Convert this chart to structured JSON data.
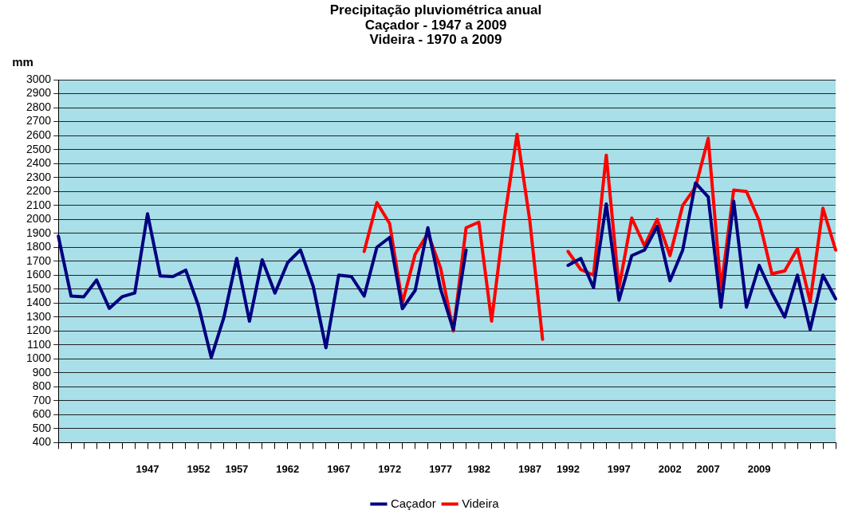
{
  "chart_data": {
    "type": "line",
    "title": "Precipitação pluviométrica anual\nCaçador - 1947 a 2009\nVideira - 1970 a 2009",
    "ylabel": "mm",
    "categories": [
      null,
      null,
      null,
      null,
      null,
      null,
      null,
      "1947",
      null,
      null,
      null,
      "1952",
      null,
      null,
      "1957",
      null,
      null,
      null,
      "1962",
      null,
      null,
      null,
      "1967",
      null,
      null,
      null,
      "1972",
      null,
      null,
      null,
      "1977",
      null,
      null,
      "1982",
      null,
      null,
      null,
      "1987",
      null,
      null,
      "1992",
      null,
      null,
      null,
      "1997",
      null,
      null,
      null,
      "2002",
      null,
      null,
      "2007",
      null,
      null,
      null,
      "2009",
      null,
      null,
      null,
      null,
      null,
      null
    ],
    "series": [
      {
        "name": "Caçador",
        "color": "#000080",
        "values": [
          1880,
          1450,
          1445,
          1565,
          1362,
          1445,
          1472,
          2040,
          1594,
          1590,
          1636,
          1380,
          1010,
          1300,
          1720,
          1270,
          1710,
          1472,
          1690,
          1781,
          1520,
          1080,
          1600,
          1590,
          1450,
          1800,
          1870,
          1360,
          1490,
          1940,
          1500,
          1210,
          1780,
          null,
          null,
          null,
          null,
          null,
          null,
          null,
          1670,
          1720,
          1510,
          2110,
          1420,
          1740,
          1780,
          1950,
          1560,
          1780,
          2260,
          2160,
          1370,
          2130,
          1370,
          1670,
          1470,
          1300,
          1600,
          1210,
          1600,
          1430
        ]
      },
      {
        "name": "Videira",
        "color": "#ff0000",
        "values": [
          null,
          null,
          null,
          null,
          null,
          null,
          null,
          null,
          null,
          null,
          null,
          null,
          null,
          null,
          null,
          null,
          null,
          null,
          null,
          null,
          null,
          null,
          null,
          null,
          1770,
          2120,
          1970,
          1400,
          1750,
          1900,
          1650,
          1200,
          1940,
          1980,
          1270,
          2000,
          2610,
          1990,
          1140,
          null,
          1770,
          1640,
          1600,
          2460,
          1510,
          2010,
          1810,
          2000,
          1740,
          2100,
          2230,
          2580,
          1500,
          2210,
          2200,
          1990,
          1610,
          1630,
          1790,
          1410,
          2080,
          1780
        ]
      }
    ],
    "ylim": [
      400,
      3000
    ],
    "yticks": [
      400,
      500,
      600,
      700,
      800,
      900,
      1000,
      1100,
      1200,
      1300,
      1400,
      1500,
      1600,
      1700,
      1800,
      1900,
      2000,
      2100,
      2200,
      2300,
      2400,
      2500,
      2600,
      2700,
      2800,
      2900,
      3000
    ],
    "grid": "y",
    "legend": "bottom",
    "marker": "none",
    "line_style": "solid"
  }
}
